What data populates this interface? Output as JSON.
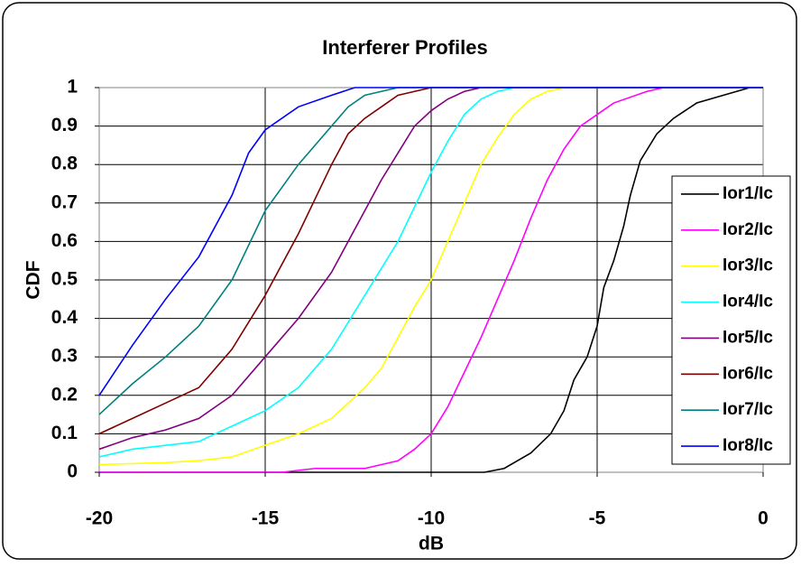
{
  "chart_data": {
    "type": "line",
    "title": "Interferer Profiles",
    "x_label": "dB",
    "y_label": "CDF",
    "xlim": [
      -20,
      0
    ],
    "ylim": [
      0,
      1
    ],
    "xticks": [
      -20,
      -15,
      -10,
      -5,
      0
    ],
    "yticks": [
      0,
      0.1,
      0.2,
      0.3,
      0.4,
      0.5,
      0.6,
      0.7,
      0.8,
      0.9,
      1
    ],
    "grid": true,
    "legend": "right",
    "series": [
      {
        "name": "Ior1/Ic",
        "color": "#000000",
        "x": [
          -20,
          -9,
          -8.4,
          -7.8,
          -7,
          -6.4,
          -6,
          -5.7,
          -5.3,
          -5,
          -4.8,
          -4.5,
          -4.2,
          -4,
          -3.7,
          -3.2,
          -2.7,
          -2,
          -1.2,
          -0.4,
          0
        ],
        "values": [
          0,
          0,
          0,
          0.01,
          0.05,
          0.1,
          0.16,
          0.24,
          0.3,
          0.38,
          0.48,
          0.55,
          0.64,
          0.72,
          0.81,
          0.88,
          0.92,
          0.96,
          0.98,
          1,
          1
        ]
      },
      {
        "name": "Ior2/Ic",
        "color": "#ff00ff",
        "x": [
          -20,
          -14.5,
          -13.5,
          -12,
          -11,
          -10.5,
          -10,
          -9.5,
          -9,
          -8.5,
          -8,
          -7.5,
          -7,
          -6.5,
          -6,
          -5.5,
          -5,
          -4.5,
          -3.5,
          -3,
          0
        ],
        "values": [
          0,
          0,
          0.01,
          0.01,
          0.03,
          0.06,
          0.1,
          0.17,
          0.26,
          0.35,
          0.45,
          0.55,
          0.66,
          0.76,
          0.84,
          0.9,
          0.93,
          0.96,
          0.99,
          1,
          1
        ]
      },
      {
        "name": "Ior3/Ic",
        "color": "#ffff00",
        "x": [
          -20,
          -18,
          -17,
          -16,
          -15,
          -14,
          -13,
          -12,
          -11.5,
          -11,
          -10.5,
          -10,
          -9.5,
          -9,
          -8.5,
          -8,
          -7.5,
          -7,
          -6.5,
          -6,
          0
        ],
        "values": [
          0.02,
          0.025,
          0.03,
          0.04,
          0.07,
          0.1,
          0.14,
          0.22,
          0.27,
          0.35,
          0.43,
          0.5,
          0.6,
          0.7,
          0.8,
          0.87,
          0.93,
          0.97,
          0.99,
          1,
          1
        ]
      },
      {
        "name": "Ior4/Ic",
        "color": "#00ffff",
        "x": [
          -20,
          -19,
          -18,
          -17,
          -16,
          -15,
          -14,
          -13,
          -12,
          -11,
          -10,
          -9.5,
          -9,
          -8.5,
          -8,
          -7.5,
          0
        ],
        "values": [
          0.04,
          0.06,
          0.07,
          0.08,
          0.12,
          0.16,
          0.22,
          0.32,
          0.46,
          0.6,
          0.78,
          0.86,
          0.93,
          0.97,
          0.99,
          1,
          1
        ]
      },
      {
        "name": "Ior5/Ic",
        "color": "#800080",
        "x": [
          -20,
          -19,
          -18,
          -17,
          -16,
          -15,
          -14,
          -13,
          -12,
          -11.5,
          -11,
          -10.5,
          -10,
          -9.5,
          -9,
          -8.5,
          0
        ],
        "values": [
          0.06,
          0.09,
          0.11,
          0.14,
          0.2,
          0.3,
          0.4,
          0.52,
          0.68,
          0.76,
          0.83,
          0.9,
          0.94,
          0.97,
          0.99,
          1,
          1
        ]
      },
      {
        "name": "Ior6/Ic",
        "color": "#800000",
        "x": [
          -20,
          -19,
          -18,
          -17,
          -16,
          -15,
          -14,
          -13,
          -12.5,
          -12,
          -11.5,
          -11,
          -10,
          0
        ],
        "values": [
          0.1,
          0.14,
          0.18,
          0.22,
          0.32,
          0.46,
          0.62,
          0.8,
          0.88,
          0.92,
          0.95,
          0.98,
          1,
          1
        ]
      },
      {
        "name": "Ior7/Ic",
        "color": "#008080",
        "x": [
          -20,
          -19,
          -18,
          -17,
          -16,
          -15,
          -14,
          -13,
          -12.5,
          -12,
          -11,
          0
        ],
        "values": [
          0.15,
          0.23,
          0.3,
          0.38,
          0.5,
          0.68,
          0.8,
          0.9,
          0.95,
          0.98,
          1,
          1
        ]
      },
      {
        "name": "Ior8/Ic",
        "color": "#0000ff",
        "x": [
          -20,
          -19,
          -18,
          -17,
          -16,
          -15.5,
          -15,
          -14,
          -13,
          -12.3,
          0
        ],
        "values": [
          0.2,
          0.33,
          0.45,
          0.56,
          0.72,
          0.83,
          0.89,
          0.95,
          0.98,
          1,
          1
        ]
      }
    ]
  }
}
